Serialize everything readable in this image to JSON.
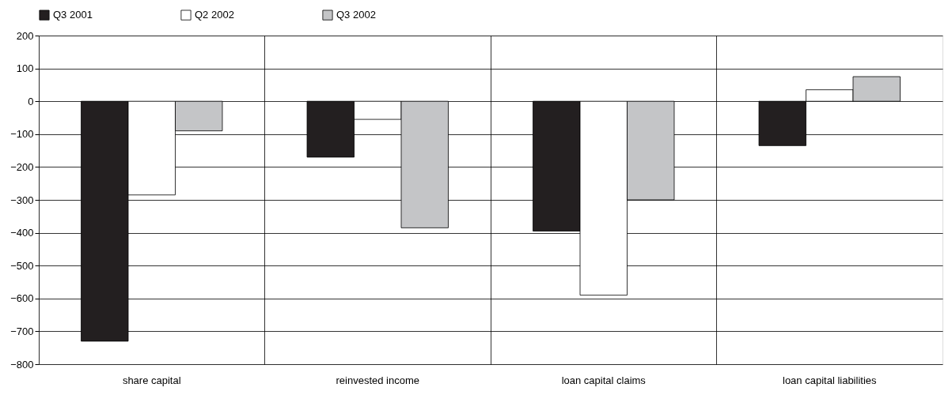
{
  "chart_data": {
    "type": "bar",
    "categories": [
      "share capital",
      "reinvested income",
      "loan capital claims",
      "loan capital liabilities"
    ],
    "series": [
      {
        "name": "Q3 2001",
        "color": "#231f20",
        "values": [
          -730,
          -170,
          -395,
          -135
        ]
      },
      {
        "name": "Q2 2002",
        "color": "#ffffff",
        "values": [
          -285,
          -55,
          -590,
          35
        ]
      },
      {
        "name": "Q3 2002",
        "color": "#c4c5c7",
        "values": [
          -90,
          -385,
          -300,
          75
        ]
      }
    ],
    "ylim": [
      -800,
      200
    ],
    "yticks": [
      -800,
      -700,
      -600,
      -500,
      -400,
      -300,
      -200,
      -100,
      0,
      100,
      200
    ],
    "grid": true,
    "legend": "top"
  }
}
